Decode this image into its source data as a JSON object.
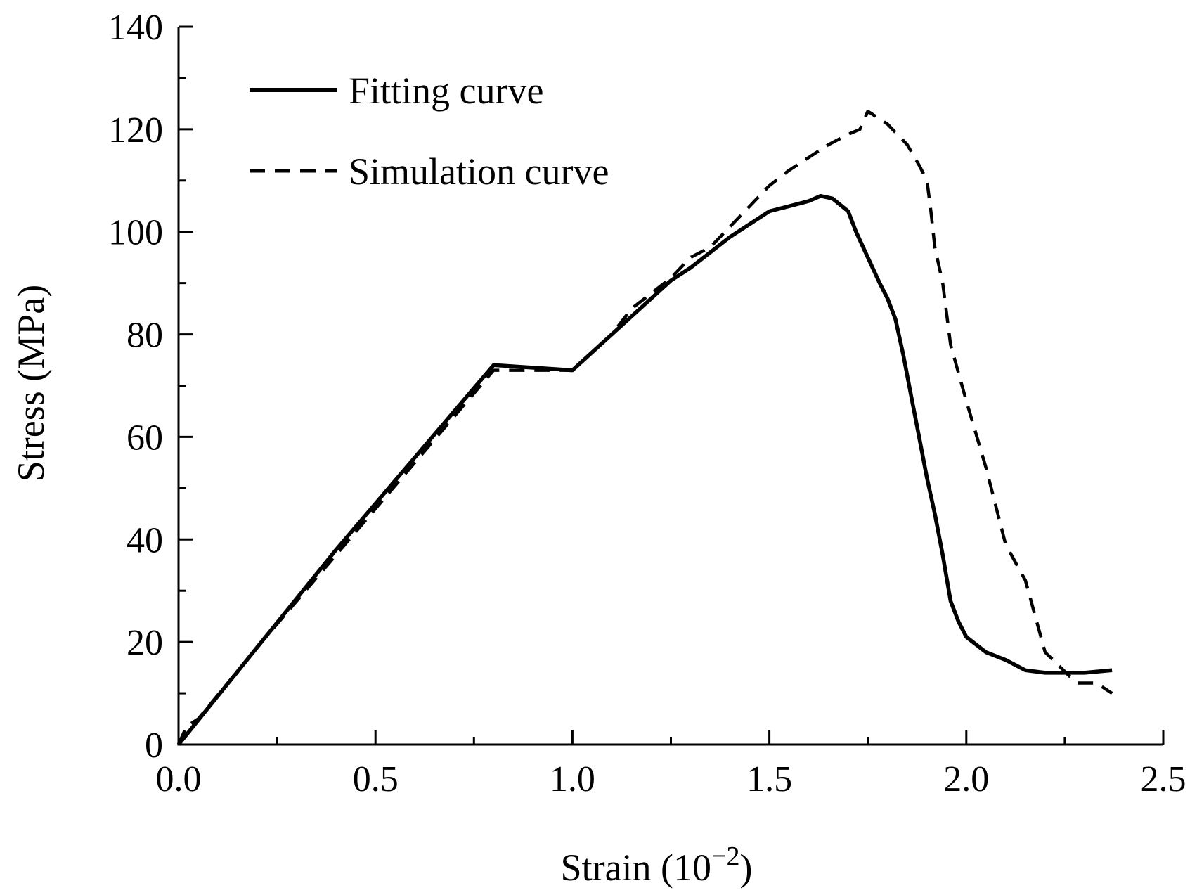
{
  "chart_data": {
    "type": "line",
    "title": "",
    "xlabel": "Strain (10",
    "xlabel_exponent": "−2",
    "xlabel_close": ")",
    "ylabel": "Stress (MPa)",
    "xlim": [
      0,
      2.5
    ],
    "ylim": [
      0,
      140
    ],
    "x_major_ticks": [
      0.0,
      0.5,
      1.0,
      1.5,
      2.0,
      2.5
    ],
    "x_tick_labels": [
      "0.0",
      "0.5",
      "1.0",
      "1.5",
      "2.0",
      "2.5"
    ],
    "x_minor_ticks": [
      0.25,
      0.75,
      1.25,
      1.75,
      2.25
    ],
    "y_major_ticks": [
      0,
      20,
      40,
      60,
      80,
      100,
      120,
      140
    ],
    "y_tick_labels": [
      "0",
      "20",
      "40",
      "60",
      "80",
      "100",
      "120",
      "140"
    ],
    "y_minor_ticks": [
      10,
      30,
      50,
      70,
      90,
      110,
      130
    ],
    "grid": false,
    "legend_position": "top-left",
    "series": [
      {
        "name": "Fitting curve",
        "style": "solid",
        "color": "#000000",
        "x": [
          0.0,
          0.2,
          0.4,
          0.6,
          0.8,
          1.0,
          1.1,
          1.2,
          1.25,
          1.3,
          1.35,
          1.4,
          1.45,
          1.5,
          1.55,
          1.6,
          1.63,
          1.66,
          1.7,
          1.72,
          1.75,
          1.78,
          1.8,
          1.82,
          1.84,
          1.86,
          1.88,
          1.9,
          1.92,
          1.94,
          1.96,
          1.98,
          2.0,
          2.05,
          2.1,
          2.15,
          2.2,
          2.3,
          2.37
        ],
        "y": [
          0,
          19,
          38,
          56,
          74,
          73,
          80,
          87,
          90.5,
          93,
          96,
          99,
          101.5,
          104,
          105,
          106,
          107,
          106.5,
          104,
          100,
          95,
          90,
          87,
          83,
          76,
          68,
          60,
          52,
          45,
          37,
          28,
          24,
          21,
          18,
          16.5,
          14.5,
          14,
          14,
          14.5
        ]
      },
      {
        "name": "Simulation curve",
        "style": "dashed",
        "color": "#000000",
        "x": [
          0.0,
          0.02,
          0.05,
          0.2,
          0.4,
          0.6,
          0.8,
          1.0,
          1.1,
          1.15,
          1.2,
          1.25,
          1.3,
          1.35,
          1.4,
          1.45,
          1.5,
          1.55,
          1.6,
          1.65,
          1.7,
          1.73,
          1.75,
          1.8,
          1.85,
          1.88,
          1.9,
          1.91,
          1.92,
          1.94,
          1.96,
          2.0,
          2.05,
          2.1,
          2.15,
          2.2,
          2.24,
          2.28,
          2.33,
          2.37
        ],
        "y": [
          0,
          3.5,
          5,
          19,
          37,
          55,
          73,
          73,
          80,
          85,
          88,
          91,
          95,
          97,
          101,
          105,
          109,
          112,
          114.5,
          117,
          119,
          120,
          123.5,
          121,
          117,
          113,
          110,
          104,
          97,
          90,
          78,
          67,
          54,
          39,
          32,
          18,
          15,
          12,
          12,
          10
        ]
      }
    ]
  }
}
